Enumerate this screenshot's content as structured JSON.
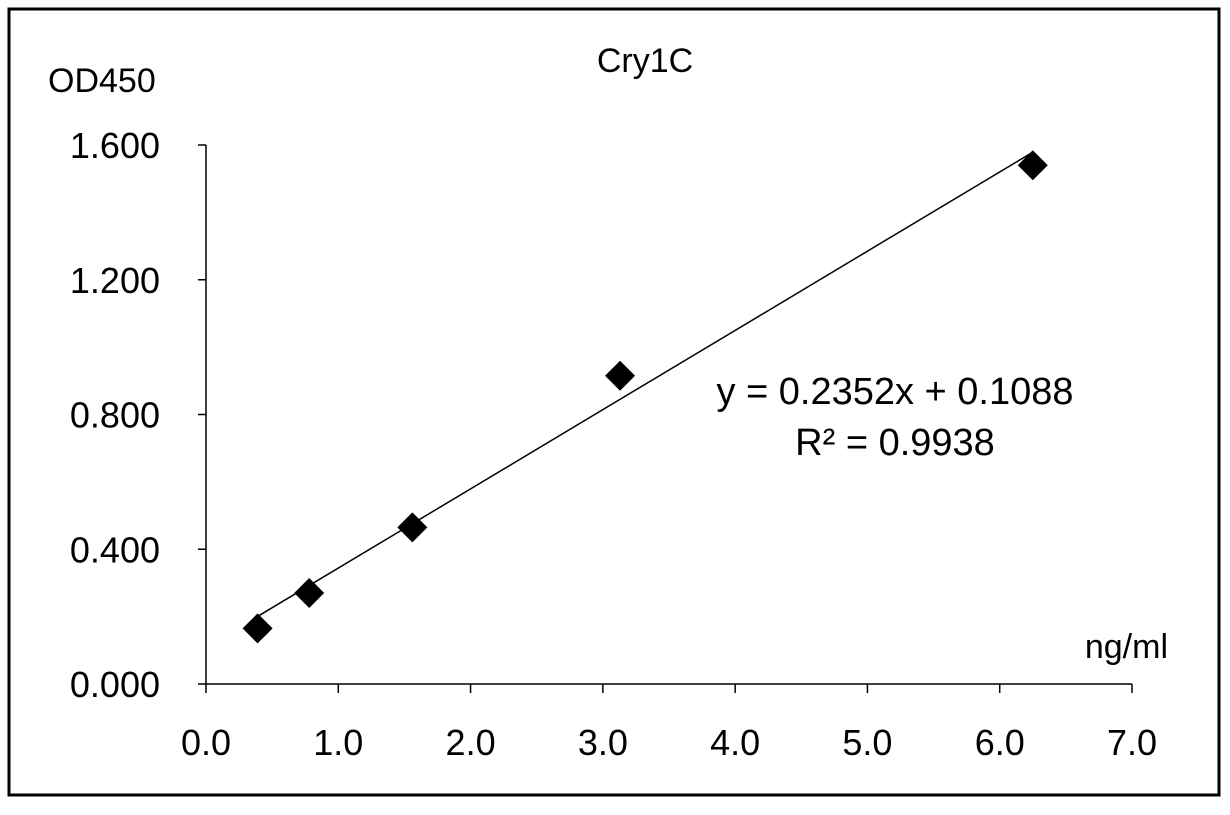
{
  "chart_data": {
    "type": "scatter",
    "title": "Cry1C",
    "ylabel": "OD450",
    "xlabel": "ng/ml",
    "xlim": [
      0,
      7
    ],
    "ylim": [
      0,
      1.6
    ],
    "xticks": [
      "0.0",
      "1.0",
      "2.0",
      "3.0",
      "4.0",
      "5.0",
      "6.0",
      "7.0"
    ],
    "yticks": [
      "0.000",
      "0.400",
      "0.800",
      "1.200",
      "1.600"
    ],
    "grid": false,
    "legend": "none",
    "series": [
      {
        "x": [
          0.39,
          0.78,
          1.56,
          3.13,
          6.25
        ],
        "y": [
          0.165,
          0.27,
          0.465,
          0.915,
          1.54
        ]
      }
    ],
    "trendline": {
      "slope": 0.2352,
      "intercept": 0.1088,
      "equation": "y = 0.2352x + 0.1088",
      "r_squared": "R² = 0.9938"
    },
    "colors": {
      "marker": "#000000",
      "axis": "#000000",
      "background": "#ffffff"
    }
  }
}
